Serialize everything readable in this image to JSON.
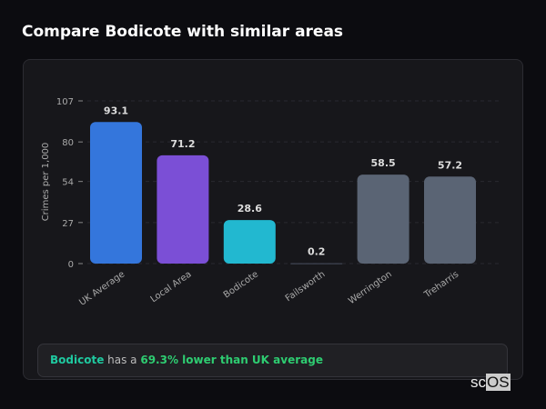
{
  "title": "Compare Bodicote with similar areas",
  "chart_data": {
    "type": "bar",
    "ylabel": "Crimes per 1,000",
    "yticks": [
      0,
      27,
      54,
      80,
      107
    ],
    "ylim": [
      0,
      107
    ],
    "grid": true,
    "categories": [
      "UK Average",
      "Local Area",
      "Bodicote",
      "Failsworth",
      "Werrington",
      "Treharris"
    ],
    "values": [
      93.1,
      71.2,
      28.6,
      0.2,
      58.5,
      57.2
    ],
    "labels": [
      "93.1",
      "71.2",
      "28.6",
      "0.2",
      "58.5",
      "57.2"
    ],
    "colors": [
      "#3476dc",
      "#7b4fd6",
      "#22b8d0",
      "#4a5060",
      "#5a6474",
      "#5a6474"
    ]
  },
  "summary": {
    "place": "Bodicote",
    "middle": " has a ",
    "stat": "69.3% lower than UK average",
    "place_color": "#1fc9a0",
    "stat_color": "#2ecc71"
  },
  "logo": "scOS"
}
